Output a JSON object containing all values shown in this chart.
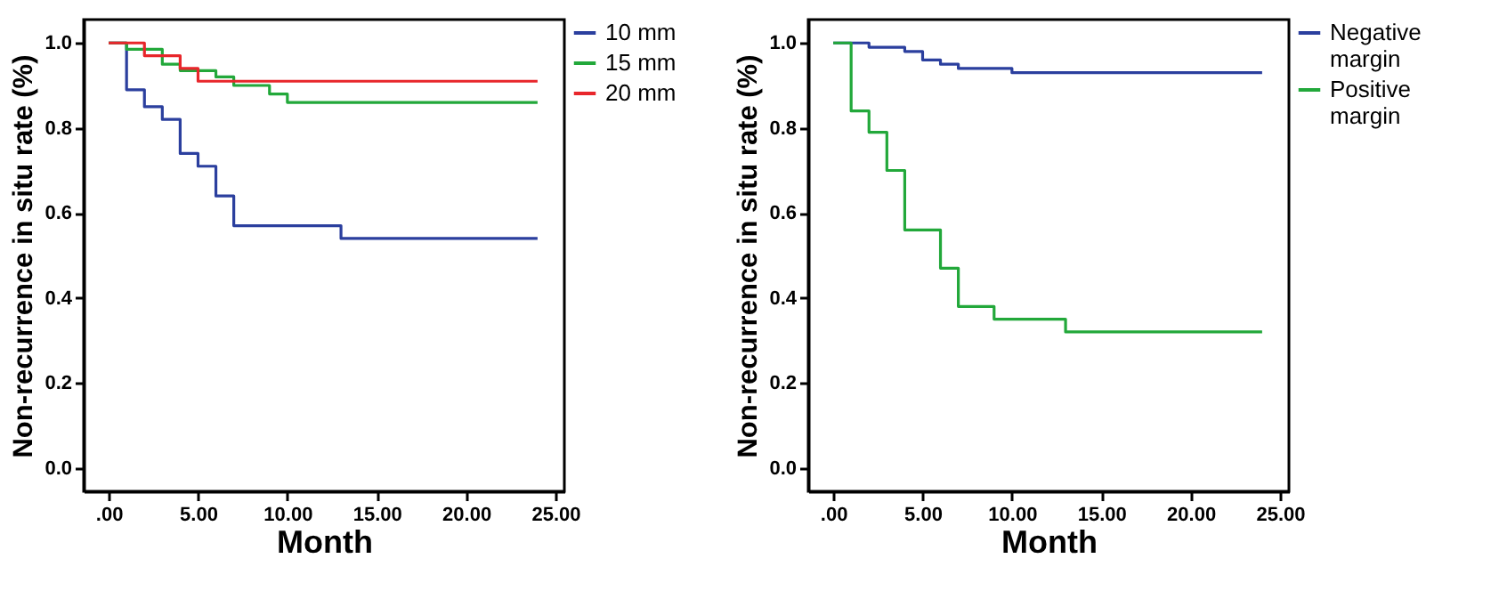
{
  "chart_data": [
    {
      "type": "step",
      "xlabel": "Month",
      "ylabel": "Non-recurrence in situ rate (%)",
      "legend": "right",
      "grid": false,
      "xlim": [
        -1.4,
        25.5
      ],
      "ylim": [
        -0.055,
        1.055
      ],
      "xticks": [
        {
          "value": 0,
          "label": ".00"
        },
        {
          "value": 5,
          "label": "5.00"
        },
        {
          "value": 10,
          "label": "10.00"
        },
        {
          "value": 15,
          "label": "15.00"
        },
        {
          "value": 20,
          "label": "20.00"
        },
        {
          "value": 25,
          "label": "25.00"
        }
      ],
      "yticks": [
        {
          "value": 0,
          "label": "0.0"
        },
        {
          "value": 0.2,
          "label": "0.2"
        },
        {
          "value": 0.4,
          "label": "0.4"
        },
        {
          "value": 0.6,
          "label": "0.6"
        },
        {
          "value": 0.8,
          "label": "0.8"
        },
        {
          "value": 1,
          "label": "1.0"
        }
      ],
      "series": [
        {
          "name": "10 mm",
          "color": "#2b3f9e",
          "x": [
            0,
            1,
            2,
            3,
            4,
            5,
            6,
            7,
            13,
            24
          ],
          "values": [
            1.0,
            0.89,
            0.85,
            0.82,
            0.74,
            0.71,
            0.64,
            0.57,
            0.54,
            0.54
          ]
        },
        {
          "name": "15 mm",
          "color": "#22a83a",
          "x": [
            0,
            1,
            3,
            4,
            6,
            7,
            9,
            10,
            24
          ],
          "values": [
            1.0,
            0.985,
            0.95,
            0.935,
            0.92,
            0.9,
            0.88,
            0.86,
            0.86
          ]
        },
        {
          "name": "20 mm",
          "color": "#e8262b",
          "x": [
            0,
            2,
            4,
            5,
            24
          ],
          "values": [
            1.0,
            0.97,
            0.94,
            0.91,
            0.91
          ]
        }
      ]
    },
    {
      "type": "step",
      "xlabel": "Month",
      "ylabel": "Non-recurrence in situ rate (%)",
      "legend": "right",
      "grid": false,
      "xlim": [
        -1.4,
        25.5
      ],
      "ylim": [
        -0.055,
        1.055
      ],
      "xticks": [
        {
          "value": 0,
          "label": ".00"
        },
        {
          "value": 5,
          "label": "5.00"
        },
        {
          "value": 10,
          "label": "10.00"
        },
        {
          "value": 15,
          "label": "15.00"
        },
        {
          "value": 20,
          "label": "20.00"
        },
        {
          "value": 25,
          "label": "25.00"
        }
      ],
      "yticks": [
        {
          "value": 0,
          "label": "0.0"
        },
        {
          "value": 0.2,
          "label": "0.2"
        },
        {
          "value": 0.4,
          "label": "0.4"
        },
        {
          "value": 0.6,
          "label": "0.6"
        },
        {
          "value": 0.8,
          "label": "0.8"
        },
        {
          "value": 1,
          "label": "1.0"
        }
      ],
      "series": [
        {
          "name": "Negative margin",
          "color": "#2b3f9e",
          "x": [
            0,
            2,
            4,
            5,
            6,
            7,
            10,
            24
          ],
          "values": [
            1.0,
            0.99,
            0.98,
            0.96,
            0.95,
            0.94,
            0.93,
            0.93
          ]
        },
        {
          "name": "Positive margin",
          "color": "#22a83a",
          "x": [
            0,
            1,
            2,
            3,
            4,
            6,
            7,
            9,
            13,
            24
          ],
          "values": [
            1.0,
            0.84,
            0.79,
            0.7,
            0.56,
            0.47,
            0.38,
            0.35,
            0.32,
            0.32
          ]
        }
      ]
    }
  ]
}
